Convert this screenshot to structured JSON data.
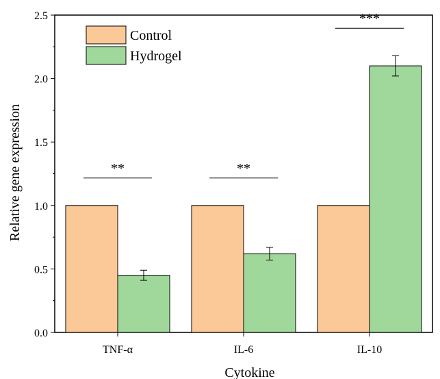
{
  "chart_data": {
    "type": "bar",
    "categories": [
      "TNF-α",
      "IL-6",
      "IL-10"
    ],
    "series": [
      {
        "name": "Control",
        "color": "#FBC898",
        "values": [
          1.0,
          1.0,
          1.0
        ],
        "errors": [
          0,
          0,
          0
        ]
      },
      {
        "name": "Hydrogel",
        "color": "#9FD89A",
        "values": [
          0.45,
          0.62,
          2.1
        ],
        "errors": [
          0.04,
          0.05,
          0.08
        ]
      }
    ],
    "significance": [
      "**",
      "**",
      "***"
    ],
    "xlabel": "Cytokine",
    "ylabel": "Relative gene expression",
    "ylim": [
      0,
      2.5
    ],
    "yticks": [
      0.0,
      0.5,
      1.0,
      1.5,
      2.0,
      2.5
    ],
    "ytick_labels": [
      "0.0",
      "0.5",
      "1.0",
      "1.5",
      "2.0",
      "2.5"
    ],
    "grid": false,
    "legend_position": "top-left"
  }
}
